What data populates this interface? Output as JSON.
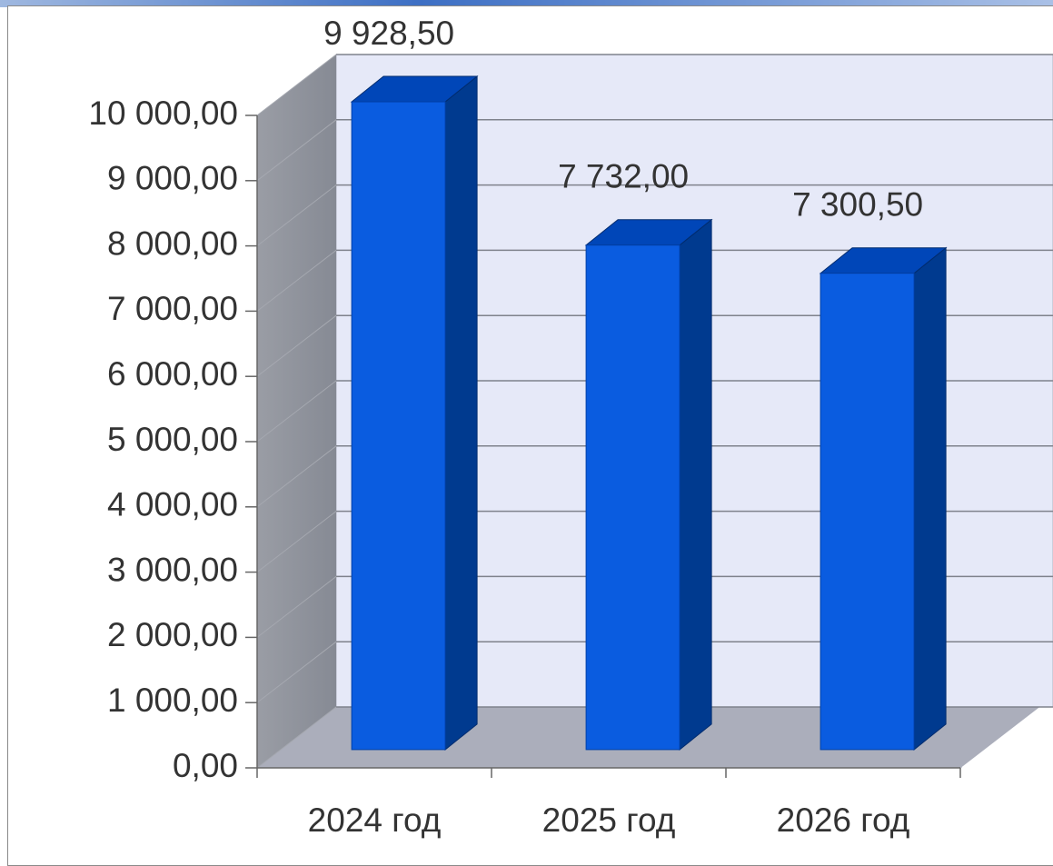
{
  "chart_data": {
    "type": "bar",
    "categories": [
      "2024 год",
      "2025 год",
      "2026 год"
    ],
    "values": [
      9928.5,
      7732,
      7300.5
    ],
    "value_labels": [
      "9 928,50",
      "7 732,00",
      "7 300,50"
    ],
    "color": "#0a5ce0",
    "ylim": [
      0,
      10000
    ],
    "yticks": [
      {
        "value": 0,
        "label": "0,00"
      },
      {
        "value": 1000,
        "label": "1 000,00"
      },
      {
        "value": 2000,
        "label": "2 000,00"
      },
      {
        "value": 3000,
        "label": "3 000,00"
      },
      {
        "value": 4000,
        "label": "4 000,00"
      },
      {
        "value": 5000,
        "label": "5 000,00"
      },
      {
        "value": 6000,
        "label": "6 000,00"
      },
      {
        "value": 7000,
        "label": "7 000,00"
      },
      {
        "value": 8000,
        "label": "8 000,00"
      },
      {
        "value": 9000,
        "label": "9 000,00"
      },
      {
        "value": 10000,
        "label": "10 000,00"
      }
    ],
    "grid": true
  }
}
